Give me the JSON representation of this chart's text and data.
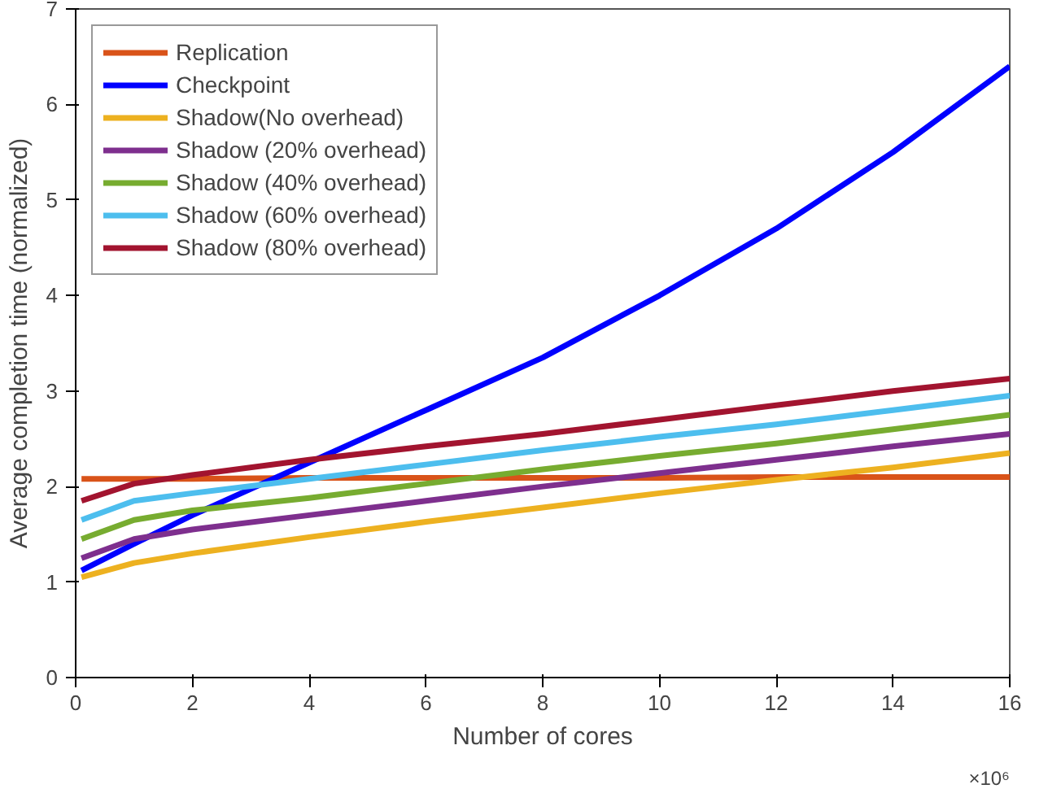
{
  "chart_data": {
    "type": "line",
    "xlabel": "Number of cores",
    "ylabel": "Average completion time (normalized)",
    "annotations": [
      "×10⁶"
    ],
    "x": [
      0.1,
      1,
      2,
      4,
      6,
      8,
      10,
      12,
      14,
      16
    ],
    "xlim": [
      0,
      16
    ],
    "xticks": [
      0,
      2,
      4,
      6,
      8,
      10,
      12,
      14,
      16
    ],
    "ylim": [
      0,
      7
    ],
    "yticks": [
      0,
      1,
      2,
      3,
      4,
      5,
      6,
      7
    ],
    "grid": false,
    "legend": "top left",
    "line_style": "solid",
    "marker": "none",
    "series": [
      {
        "name": "Replication",
        "color": "#d95319",
        "values": [
          2.08,
          2.08,
          2.08,
          2.09,
          2.09,
          2.09,
          2.09,
          2.1,
          2.1,
          2.1
        ]
      },
      {
        "name": "Checkpoint",
        "color": "#0000ff",
        "values": [
          1.12,
          1.4,
          1.7,
          2.25,
          2.8,
          3.35,
          4.0,
          4.7,
          5.5,
          6.4
        ]
      },
      {
        "name": "Shadow(No overhead)",
        "color": "#edb120",
        "values": [
          1.05,
          1.2,
          1.3,
          1.47,
          1.63,
          1.78,
          1.93,
          2.07,
          2.2,
          2.35
        ]
      },
      {
        "name": "Shadow (20% overhead)",
        "color": "#7e2f8e",
        "values": [
          1.25,
          1.45,
          1.55,
          1.7,
          1.85,
          2.0,
          2.14,
          2.28,
          2.42,
          2.55
        ]
      },
      {
        "name": "Shadow (40% overhead)",
        "color": "#77ac30",
        "values": [
          1.45,
          1.65,
          1.75,
          1.88,
          2.03,
          2.18,
          2.32,
          2.45,
          2.6,
          2.75
        ]
      },
      {
        "name": "Shadow (60% overhead)",
        "color": "#4dbeee",
        "values": [
          1.65,
          1.85,
          1.93,
          2.08,
          2.23,
          2.38,
          2.52,
          2.65,
          2.8,
          2.95
        ]
      },
      {
        "name": "Shadow (80% overhead)",
        "color": "#a2142f",
        "values": [
          1.85,
          2.03,
          2.12,
          2.28,
          2.42,
          2.55,
          2.7,
          2.85,
          3.0,
          3.13
        ]
      }
    ]
  }
}
